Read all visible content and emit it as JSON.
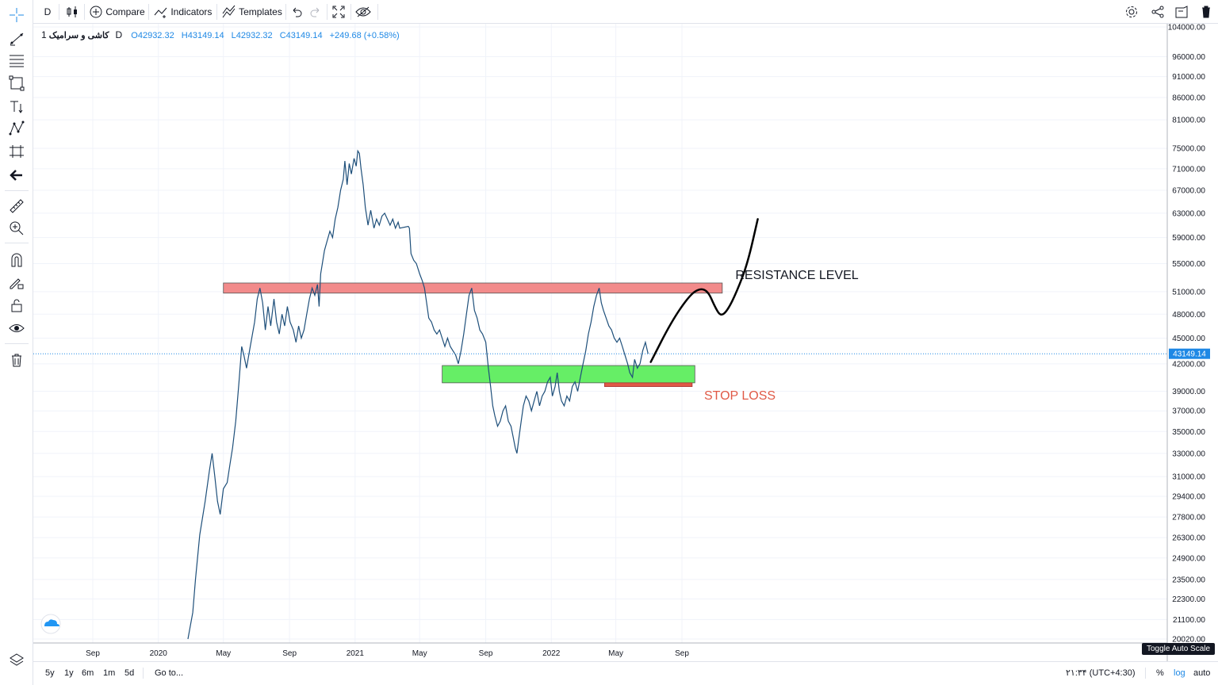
{
  "toolbar": {
    "interval": "D",
    "compare_label": "Compare",
    "indicators_label": "Indicators",
    "templates_label": "Templates"
  },
  "legend": {
    "symbol": "کاشی و سرامیک",
    "interval": "1D",
    "open": "O42932.32",
    "high": "H43149.14",
    "low": "L42932.32",
    "close": "C43149.14",
    "change": "+249.68 (+0.58%)"
  },
  "bottom": {
    "ranges": [
      "5y",
      "1y",
      "6m",
      "1m",
      "5d"
    ],
    "goto_label": "Go to...",
    "clock": "۲۱:۳۴ (UTC+4:30)",
    "percent_label": "%",
    "log_label": "log",
    "auto_label": "auto"
  },
  "tooltip": "Toggle Auto Scale",
  "icons": {
    "left_toolbar": [
      "crosshair-icon",
      "trend-line-icon",
      "fib-icon",
      "rectangle-icon",
      "text-icon",
      "pattern-icon",
      "prediction-icon",
      "back-arrow-icon",
      "ruler-icon",
      "zoom-icon",
      "magnet-icon",
      "lock-drawing-icon",
      "lock-icon",
      "eye-icon",
      "trash-icon",
      "layers-icon"
    ],
    "top_right": [
      "settings-icon",
      "share-icon",
      "snapshot-icon",
      "trash-icon"
    ]
  },
  "colors": {
    "price_line": "#1e88e5",
    "resistance_fill": "#f28b8b",
    "support_fill": "#66ee66",
    "stop_loss": "#e05a47",
    "price_badge": "#1e88e5"
  },
  "chart_data": {
    "type": "line",
    "scale": "log",
    "grid": true,
    "ylim": [
      20020,
      104000
    ],
    "y_ticks": [
      104000,
      96000,
      91000,
      86000,
      81000,
      75000,
      71000,
      67000,
      63000,
      59000,
      55000,
      51000,
      48000,
      45000,
      42000,
      39000,
      37000,
      35000,
      33000,
      31000,
      29400,
      27800,
      26300,
      24900,
      23500,
      22300,
      21100,
      20020
    ],
    "y_tick_labels": [
      "104000.00",
      "96000.00",
      "91000.00",
      "86000.00",
      "81000.00",
      "75000.00",
      "71000.00",
      "67000.00",
      "63000.00",
      "59000.00",
      "55000.00",
      "51000.00",
      "48000.00",
      "45000.00",
      "42000.00",
      "39000.00",
      "37000.00",
      "35000.00",
      "33000.00",
      "31000.00",
      "29400.00",
      "27800.00",
      "26300.00",
      "24900.00",
      "23500.00",
      "22300.00",
      "21100.00",
      "20020.00"
    ],
    "x_ticks": [
      "2019-09-01",
      "2020-01-01",
      "2020-05-01",
      "2020-09-01",
      "2021-01-01",
      "2021-05-01",
      "2021-09-01",
      "2022-01-01",
      "2022-05-01",
      "2022-09-01"
    ],
    "x_tick_labels": [
      "Sep",
      "2020",
      "May",
      "Sep",
      "2021",
      "May",
      "Sep",
      "2022",
      "May",
      "Sep"
    ],
    "last_price": 43149.14,
    "last_price_label": "43149.14",
    "series": [
      {
        "points": [
          [
            "2020-02-25",
            20020
          ],
          [
            "2020-03-05",
            21500
          ],
          [
            "2020-03-10",
            23500
          ],
          [
            "2020-03-18",
            26500
          ],
          [
            "2020-03-28",
            29000
          ],
          [
            "2020-04-05",
            31500
          ],
          [
            "2020-04-10",
            33000
          ],
          [
            "2020-04-15",
            31000
          ],
          [
            "2020-04-20",
            29000
          ],
          [
            "2020-04-25",
            28000
          ],
          [
            "2020-05-01",
            30000
          ],
          [
            "2020-05-08",
            30500
          ],
          [
            "2020-05-13",
            32000
          ],
          [
            "2020-05-18",
            33500
          ],
          [
            "2020-05-24",
            36000
          ],
          [
            "2020-05-30",
            40000
          ],
          [
            "2020-06-04",
            44000
          ],
          [
            "2020-06-08",
            43000
          ],
          [
            "2020-06-13",
            41500
          ],
          [
            "2020-06-20",
            44000
          ],
          [
            "2020-06-28",
            47000
          ],
          [
            "2020-07-03",
            50000
          ],
          [
            "2020-07-08",
            51500
          ],
          [
            "2020-07-13",
            49500
          ],
          [
            "2020-07-18",
            46000
          ],
          [
            "2020-07-23",
            49000
          ],
          [
            "2020-07-28",
            46500
          ],
          [
            "2020-08-03",
            50000
          ],
          [
            "2020-08-08",
            47000
          ],
          [
            "2020-08-13",
            45500
          ],
          [
            "2020-08-18",
            48000
          ],
          [
            "2020-08-23",
            46500
          ],
          [
            "2020-08-28",
            49000
          ],
          [
            "2020-09-02",
            47000
          ],
          [
            "2020-09-08",
            46000
          ],
          [
            "2020-09-13",
            44500
          ],
          [
            "2020-09-18",
            46500
          ],
          [
            "2020-09-23",
            45000
          ],
          [
            "2020-09-28",
            46000
          ],
          [
            "2020-10-03",
            48000
          ],
          [
            "2020-10-08",
            50000
          ],
          [
            "2020-10-13",
            51500
          ],
          [
            "2020-10-18",
            50500
          ],
          [
            "2020-10-23",
            52000
          ],
          [
            "2020-10-26",
            49000
          ],
          [
            "2020-10-29",
            53500
          ],
          [
            "2020-11-05",
            57000
          ],
          [
            "2020-11-10",
            58500
          ],
          [
            "2020-11-15",
            60000
          ],
          [
            "2020-11-20",
            59000
          ],
          [
            "2020-11-25",
            62000
          ],
          [
            "2020-11-30",
            64000
          ],
          [
            "2020-12-05",
            67000
          ],
          [
            "2020-12-10",
            69000
          ],
          [
            "2020-12-13",
            72500
          ],
          [
            "2020-12-17",
            68000
          ],
          [
            "2020-12-21",
            72000
          ],
          [
            "2020-12-25",
            70000
          ],
          [
            "2020-12-30",
            73000
          ],
          [
            "2021-01-03",
            71500
          ],
          [
            "2021-01-06",
            74500
          ],
          [
            "2021-01-09",
            74000
          ],
          [
            "2021-01-12",
            71000
          ],
          [
            "2021-01-16",
            68000
          ],
          [
            "2021-01-20",
            64000
          ],
          [
            "2021-01-25",
            61000
          ],
          [
            "2021-01-30",
            63500
          ],
          [
            "2021-02-05",
            60500
          ],
          [
            "2021-02-10",
            62000
          ],
          [
            "2021-02-15",
            61000
          ],
          [
            "2021-02-20",
            62500
          ],
          [
            "2021-02-25",
            63000
          ],
          [
            "2021-03-02",
            62000
          ],
          [
            "2021-03-07",
            61000
          ],
          [
            "2021-03-12",
            62000
          ],
          [
            "2021-03-17",
            60500
          ],
          [
            "2021-03-22",
            61500
          ],
          [
            "2021-03-25",
            60500
          ],
          [
            "2021-04-10",
            60800
          ],
          [
            "2021-04-12",
            60500
          ],
          [
            "2021-04-15",
            56500
          ],
          [
            "2021-04-20",
            55500
          ],
          [
            "2021-04-25",
            55000
          ],
          [
            "2021-05-01",
            53500
          ],
          [
            "2021-05-06",
            52500
          ],
          [
            "2021-05-10",
            51500
          ],
          [
            "2021-05-14",
            49500
          ],
          [
            "2021-05-18",
            47500
          ],
          [
            "2021-05-23",
            47000
          ],
          [
            "2021-05-28",
            46000
          ],
          [
            "2021-06-02",
            45500
          ],
          [
            "2021-06-07",
            46000
          ],
          [
            "2021-06-12",
            45000
          ],
          [
            "2021-06-17",
            44000
          ],
          [
            "2021-06-22",
            45000
          ],
          [
            "2021-06-27",
            44000
          ],
          [
            "2021-07-02",
            43500
          ],
          [
            "2021-07-07",
            43000
          ],
          [
            "2021-07-12",
            42000
          ],
          [
            "2021-07-17",
            43500
          ],
          [
            "2021-07-22",
            45500
          ],
          [
            "2021-07-27",
            48000
          ],
          [
            "2021-08-01",
            50500
          ],
          [
            "2021-08-06",
            51500
          ],
          [
            "2021-08-11",
            48500
          ],
          [
            "2021-08-16",
            47500
          ],
          [
            "2021-08-21",
            46000
          ],
          [
            "2021-08-26",
            45500
          ],
          [
            "2021-09-01",
            44500
          ],
          [
            "2021-09-06",
            41500
          ],
          [
            "2021-09-10",
            39500
          ],
          [
            "2021-09-14",
            37500
          ],
          [
            "2021-09-18",
            36500
          ],
          [
            "2021-09-23",
            35500
          ],
          [
            "2021-09-28",
            36000
          ],
          [
            "2021-10-03",
            37000
          ],
          [
            "2021-10-08",
            37500
          ],
          [
            "2021-10-13",
            36000
          ],
          [
            "2021-10-18",
            35500
          ],
          [
            "2021-10-22",
            34500
          ],
          [
            "2021-10-26",
            33500
          ],
          [
            "2021-10-29",
            33000
          ],
          [
            "2021-11-02",
            34500
          ],
          [
            "2021-11-06",
            36000
          ],
          [
            "2021-11-10",
            37500
          ],
          [
            "2021-11-15",
            38500
          ],
          [
            "2021-11-20",
            38000
          ],
          [
            "2021-11-25",
            37000
          ],
          [
            "2021-11-30",
            38000
          ],
          [
            "2021-12-05",
            39000
          ],
          [
            "2021-12-10",
            37500
          ],
          [
            "2021-12-15",
            38500
          ],
          [
            "2021-12-20",
            39000
          ],
          [
            "2021-12-25",
            40000
          ],
          [
            "2021-12-30",
            40500
          ],
          [
            "2022-01-03",
            38500
          ],
          [
            "2022-01-08",
            39500
          ],
          [
            "2022-01-12",
            41000
          ],
          [
            "2022-01-16",
            39000
          ],
          [
            "2022-01-20",
            38000
          ],
          [
            "2022-01-25",
            37500
          ],
          [
            "2022-01-30",
            38500
          ],
          [
            "2022-02-04",
            38000
          ],
          [
            "2022-02-09",
            39500
          ],
          [
            "2022-02-14",
            40000
          ],
          [
            "2022-02-19",
            39000
          ],
          [
            "2022-02-24",
            40500
          ],
          [
            "2022-03-01",
            42000
          ],
          [
            "2022-03-06",
            43500
          ],
          [
            "2022-03-11",
            45500
          ],
          [
            "2022-03-16",
            47000
          ],
          [
            "2022-03-21",
            49000
          ],
          [
            "2022-03-26",
            50500
          ],
          [
            "2022-03-31",
            51500
          ],
          [
            "2022-04-04",
            49500
          ],
          [
            "2022-04-08",
            48500
          ],
          [
            "2022-04-13",
            47500
          ],
          [
            "2022-04-18",
            46500
          ],
          [
            "2022-04-23",
            46000
          ],
          [
            "2022-04-28",
            45000
          ],
          [
            "2022-05-03",
            44500
          ],
          [
            "2022-05-08",
            45000
          ],
          [
            "2022-05-13",
            44000
          ],
          [
            "2022-05-18",
            43000
          ],
          [
            "2022-05-23",
            42000
          ],
          [
            "2022-05-27",
            41000
          ],
          [
            "2022-06-01",
            40500
          ],
          [
            "2022-06-05",
            42500
          ],
          [
            "2022-06-10",
            41500
          ],
          [
            "2022-06-15",
            42000
          ],
          [
            "2022-06-20",
            43500
          ],
          [
            "2022-06-25",
            44500
          ],
          [
            "2022-06-30",
            43149.14
          ]
        ]
      }
    ],
    "annotations": [
      {
        "type": "zone",
        "label": "RESISTANCE LEVEL",
        "from_date": "2020-05-01",
        "to_date": "2022-11-15",
        "y_top": 52200,
        "y_bottom": 50800,
        "color": "#f28b8b"
      },
      {
        "type": "zone",
        "label": "",
        "from_date": "2021-06-12",
        "to_date": "2022-09-25",
        "y_top": 41800,
        "y_bottom": 39900,
        "color": "#66ee66"
      },
      {
        "type": "zone",
        "label": "STOP LOSS",
        "from_date": "2022-04-10",
        "to_date": "2022-09-20",
        "y_top": 39900,
        "y_bottom": 39500,
        "color": "#e05a47"
      },
      {
        "type": "projection",
        "points": [
          [
            "2022-07-05",
            42200
          ],
          [
            "2022-08-12",
            47000
          ],
          [
            "2022-09-15",
            50500
          ],
          [
            "2022-10-05",
            51500
          ],
          [
            "2022-10-20",
            51000
          ],
          [
            "2022-11-01",
            49000
          ],
          [
            "2022-11-12",
            47700
          ],
          [
            "2022-11-25",
            48500
          ],
          [
            "2022-12-12",
            51000
          ],
          [
            "2023-01-01",
            55000
          ],
          [
            "2023-01-20",
            62000
          ]
        ]
      }
    ]
  }
}
